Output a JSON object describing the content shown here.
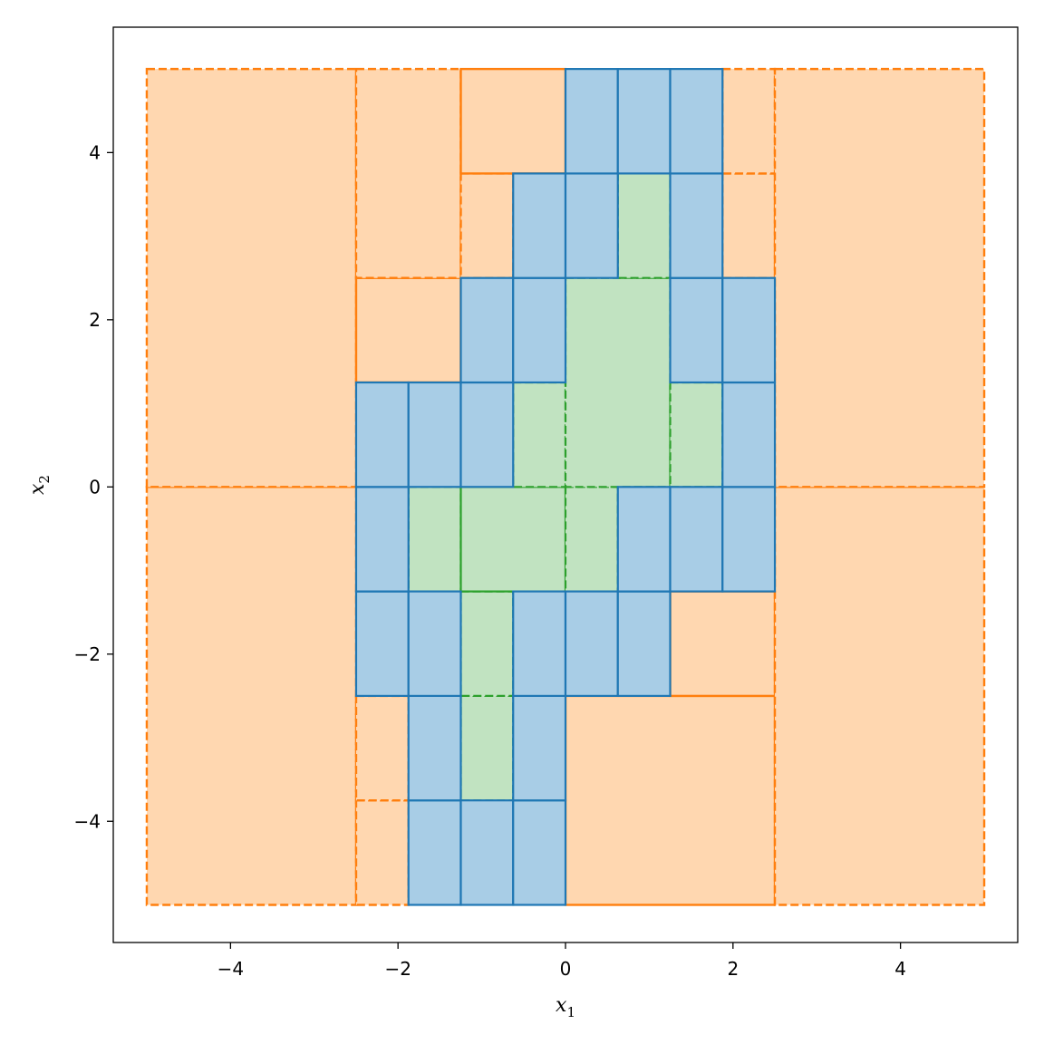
{
  "chart_data": {
    "type": "scatter",
    "title": "",
    "xlabel": "x",
    "xlabel_sub": "1",
    "ylabel": "x",
    "ylabel_sub": "2",
    "xlim": [
      -5.4,
      5.4
    ],
    "ylim": [
      -5.45,
      5.5
    ],
    "xticks": [
      -4,
      -2,
      0,
      2,
      4
    ],
    "yticks": [
      -4,
      -2,
      0,
      2,
      4
    ],
    "xtick_labels": [
      "−4",
      "−2",
      "0",
      "2",
      "4"
    ],
    "ytick_labels": [
      "−4",
      "−2",
      "0",
      "2",
      "4"
    ],
    "grid": false,
    "legend": "none",
    "domain": [
      -5,
      5,
      -5,
      5
    ],
    "region": {
      "description_hidden": true,
      "polygon": [
        [
          0.6,
          3.9
        ],
        [
          1.3,
          3.9
        ],
        [
          1.5,
          3.4
        ],
        [
          1.75,
          2.8
        ],
        [
          1.9,
          2.3
        ],
        [
          1.9,
          1.35
        ],
        [
          2.05,
          1.2
        ],
        [
          2.05,
          -0.45
        ],
        [
          1.5,
          -0.45
        ],
        [
          1.2,
          -0.75
        ],
        [
          0.8,
          -1.05
        ],
        [
          0.5,
          -1.55
        ],
        [
          0.3,
          -1.85
        ],
        [
          0.1,
          -2.3
        ],
        [
          -0.1,
          -2.65
        ],
        [
          -0.3,
          -3.2
        ],
        [
          -0.55,
          -3.55
        ],
        [
          -0.65,
          -3.85
        ],
        [
          -1.3,
          -3.85
        ],
        [
          -1.5,
          -3.5
        ],
        [
          -1.65,
          -2.9
        ],
        [
          -1.85,
          -2.3
        ],
        [
          -1.9,
          -1.85
        ],
        [
          -2.05,
          -1.35
        ],
        [
          -2.05,
          0.5
        ],
        [
          -1.55,
          0.5
        ],
        [
          -1.3,
          0.8
        ],
        [
          -0.95,
          1.15
        ],
        [
          -0.75,
          1.55
        ],
        [
          -0.55,
          1.8
        ],
        [
          -0.3,
          2.1
        ],
        [
          -0.05,
          2.45
        ],
        [
          0.1,
          2.75
        ],
        [
          0.25,
          3.05
        ],
        [
          0.4,
          3.45
        ]
      ]
    },
    "colors": {
      "outside_fill": "#ffd7b0",
      "outside_edge": "#ff7f0e",
      "inside_fill": "#c1e3c1",
      "inside_edge": "#2ca02c",
      "boundary_fill": "#a8cde6",
      "boundary_edge": "#1f77b4"
    }
  }
}
